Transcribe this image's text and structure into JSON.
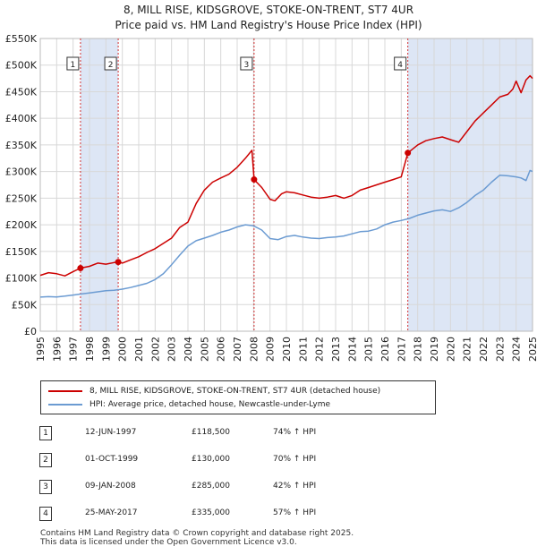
{
  "title_line1": "8, MILL RISE, KIDSGROVE, STOKE-ON-TRENT, ST7 4UR",
  "title_line2": "Price paid vs. HM Land Registry's House Price Index (HPI)",
  "chart_data": {
    "type": "line",
    "title": "8, MILL RISE, KIDSGROVE, STOKE-ON-TRENT, ST7 4UR — Price paid vs. HM Land Registry's House Price Index (HPI)",
    "xlabel": "",
    "ylabel": "",
    "xlim": [
      1995,
      2025
    ],
    "ylim": [
      0,
      550000
    ],
    "x_ticks": [
      "1995",
      "1996",
      "1997",
      "1998",
      "1999",
      "2000",
      "2001",
      "2002",
      "2003",
      "2004",
      "2005",
      "2006",
      "2007",
      "2008",
      "2009",
      "2010",
      "2011",
      "2012",
      "2013",
      "2014",
      "2015",
      "2016",
      "2017",
      "2018",
      "2019",
      "2020",
      "2021",
      "2022",
      "2023",
      "2024",
      "2025"
    ],
    "y_ticks": [
      {
        "value": 0,
        "label": "£0"
      },
      {
        "value": 50000,
        "label": "£50K"
      },
      {
        "value": 100000,
        "label": "£100K"
      },
      {
        "value": 150000,
        "label": "£150K"
      },
      {
        "value": 200000,
        "label": "£200K"
      },
      {
        "value": 250000,
        "label": "£250K"
      },
      {
        "value": 300000,
        "label": "£300K"
      },
      {
        "value": 350000,
        "label": "£350K"
      },
      {
        "value": 400000,
        "label": "£400K"
      },
      {
        "value": 450000,
        "label": "£450K"
      },
      {
        "value": 500000,
        "label": "£500K"
      },
      {
        "value": 550000,
        "label": "£550K"
      }
    ],
    "grid": true,
    "series": [
      {
        "name": "8, MILL RISE, KIDSGROVE, STOKE-ON-TRENT, ST7 4UR (detached house)",
        "color": "#cc0000",
        "x": [
          1995.0,
          1995.5,
          1996.0,
          1996.5,
          1997.0,
          1997.45,
          1998.0,
          1998.5,
          1999.0,
          1999.5,
          1999.75,
          2000.0,
          2000.5,
          2001.0,
          2001.5,
          2002.0,
          2002.5,
          2003.0,
          2003.5,
          2004.0,
          2004.5,
          2005.0,
          2005.5,
          2006.0,
          2006.5,
          2007.0,
          2007.5,
          2007.9,
          2008.03,
          2008.5,
          2009.0,
          2009.3,
          2009.7,
          2010.0,
          2010.5,
          2011.0,
          2011.5,
          2012.0,
          2012.5,
          2013.0,
          2013.5,
          2014.0,
          2014.5,
          2015.0,
          2015.5,
          2016.0,
          2016.5,
          2017.0,
          2017.4,
          2017.8,
          2018.0,
          2018.5,
          2019.0,
          2019.5,
          2020.0,
          2020.5,
          2021.0,
          2021.5,
          2022.0,
          2022.5,
          2023.0,
          2023.5,
          2023.8,
          2024.0,
          2024.3,
          2024.6,
          2024.85,
          2025.0
        ],
        "values": [
          105000,
          110000,
          108000,
          104000,
          112000,
          118500,
          122000,
          128000,
          126000,
          129000,
          130000,
          128000,
          134000,
          140000,
          148000,
          155000,
          165000,
          175000,
          195000,
          205000,
          240000,
          265000,
          280000,
          288000,
          295000,
          308000,
          325000,
          340000,
          285000,
          270000,
          248000,
          245000,
          258000,
          262000,
          260000,
          256000,
          252000,
          250000,
          252000,
          255000,
          250000,
          255000,
          265000,
          270000,
          275000,
          280000,
          285000,
          290000,
          335000,
          345000,
          350000,
          358000,
          362000,
          365000,
          360000,
          355000,
          375000,
          395000,
          410000,
          425000,
          440000,
          445000,
          455000,
          470000,
          448000,
          472000,
          480000,
          475000
        ]
      },
      {
        "name": "HPI: Average price, detached house, Newcastle-under-Lyme",
        "color": "#6b9bd2",
        "x": [
          1995.0,
          1995.5,
          1996.0,
          1996.5,
          1997.0,
          1997.5,
          1998.0,
          1998.5,
          1999.0,
          1999.5,
          2000.0,
          2000.5,
          2001.0,
          2001.5,
          2002.0,
          2002.5,
          2003.0,
          2003.5,
          2004.0,
          2004.5,
          2005.0,
          2005.5,
          2006.0,
          2006.5,
          2007.0,
          2007.5,
          2008.0,
          2008.5,
          2009.0,
          2009.5,
          2010.0,
          2010.5,
          2011.0,
          2011.5,
          2012.0,
          2012.5,
          2013.0,
          2013.5,
          2014.0,
          2014.5,
          2015.0,
          2015.5,
          2016.0,
          2016.5,
          2017.0,
          2017.5,
          2018.0,
          2018.5,
          2019.0,
          2019.5,
          2020.0,
          2020.5,
          2021.0,
          2021.5,
          2022.0,
          2022.5,
          2023.0,
          2023.5,
          2024.0,
          2024.3,
          2024.6,
          2024.85,
          2025.0
        ],
        "values": [
          64000,
          65000,
          64500,
          66000,
          68000,
          70000,
          72000,
          74000,
          76000,
          77000,
          79000,
          82000,
          86000,
          90000,
          97000,
          108000,
          125000,
          143000,
          160000,
          170000,
          175000,
          180000,
          186000,
          190000,
          196000,
          200000,
          198000,
          190000,
          174000,
          172000,
          178000,
          180000,
          177000,
          175000,
          174000,
          176000,
          177000,
          179000,
          183000,
          187000,
          188000,
          192000,
          200000,
          205000,
          208000,
          212000,
          218000,
          222000,
          226000,
          228000,
          225000,
          232000,
          242000,
          255000,
          265000,
          280000,
          293000,
          292000,
          290000,
          288000,
          283000,
          302000,
          300000
        ]
      }
    ],
    "markers": [
      {
        "label": "1",
        "x": 1997.45,
        "value": 118500
      },
      {
        "label": "2",
        "x": 1999.75,
        "value": 130000
      },
      {
        "label": "3",
        "x": 2008.03,
        "value": 285000
      },
      {
        "label": "4",
        "x": 2017.4,
        "value": 335000
      }
    ]
  },
  "legend": {
    "red_label": "8, MILL RISE, KIDSGROVE, STOKE-ON-TRENT, ST7 4UR (detached house)",
    "blue_label": "HPI: Average price, detached house, Newcastle-under-Lyme"
  },
  "transactions": [
    {
      "num": "1",
      "date": "12-JUN-1997",
      "price": "£118,500",
      "hpi": "74% ↑ HPI"
    },
    {
      "num": "2",
      "date": "01-OCT-1999",
      "price": "£130,000",
      "hpi": "70% ↑ HPI"
    },
    {
      "num": "3",
      "date": "09-JAN-2008",
      "price": "£285,000",
      "hpi": "42% ↑ HPI"
    },
    {
      "num": "4",
      "date": "25-MAY-2017",
      "price": "£335,000",
      "hpi": "57% ↑ HPI"
    }
  ],
  "footer": {
    "line1": "Contains HM Land Registry data © Crown copyright and database right 2025.",
    "line2": "This data is licensed under the Open Government Licence v3.0."
  },
  "colors": {
    "property": "#cc0000",
    "hpi": "#6b9bd2",
    "band": "#dde6f5",
    "grid": "#d8d8d8"
  }
}
